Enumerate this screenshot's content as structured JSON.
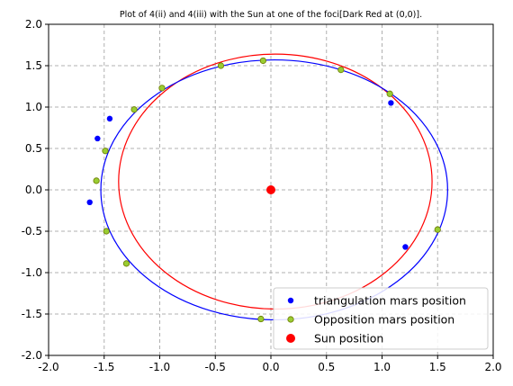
{
  "chart_data": {
    "type": "scatter",
    "title": "Plot of 4(ii) and 4(iii) with the Sun at one of the foci[Dark Red at (0,0)].",
    "xlabel": "",
    "ylabel": "",
    "xlim": [
      -2.0,
      2.0
    ],
    "ylim": [
      -2.0,
      2.0
    ],
    "x_ticks": [
      "-2.0",
      "-1.5",
      "-1.0",
      "-0.5",
      "0.0",
      "0.5",
      "1.0",
      "1.5",
      "2.0"
    ],
    "y_ticks": [
      "-2.0",
      "-1.5",
      "-1.0",
      "-0.5",
      "0.0",
      "0.5",
      "1.0",
      "1.5",
      "2.0"
    ],
    "grid": true,
    "legend_position": "lower-right",
    "orbits": [
      {
        "color": "#ff0000",
        "cx": 0.04,
        "cy": 0.1,
        "rx": 1.41,
        "ry": 1.54
      },
      {
        "color": "#0000ff",
        "cx": 0.03,
        "cy": 0.0,
        "rx": 1.56,
        "ry": 1.57
      }
    ],
    "series": [
      {
        "name": "triangulation mars position",
        "color": "#0000ff",
        "points": [
          [
            -1.63,
            -0.15
          ],
          [
            -1.56,
            0.62
          ],
          [
            -1.45,
            0.86
          ],
          [
            1.08,
            1.05
          ],
          [
            1.21,
            -0.69
          ],
          [
            0.63,
            1.45
          ]
        ]
      },
      {
        "name": "Opposition mars position",
        "color": "#9acd32",
        "points": [
          [
            -1.57,
            0.11
          ],
          [
            -1.49,
            0.47
          ],
          [
            -1.48,
            -0.5
          ],
          [
            -1.23,
            0.97
          ],
          [
            -0.98,
            1.23
          ],
          [
            -0.45,
            1.5
          ],
          [
            -0.07,
            1.56
          ],
          [
            0.63,
            1.45
          ],
          [
            1.07,
            1.16
          ],
          [
            1.5,
            -0.48
          ],
          [
            -1.3,
            -0.89
          ],
          [
            -0.09,
            -1.56
          ]
        ]
      },
      {
        "name": "Sun position",
        "color": "#ff0000",
        "points": [
          [
            0.0,
            0.0
          ]
        ]
      }
    ]
  }
}
